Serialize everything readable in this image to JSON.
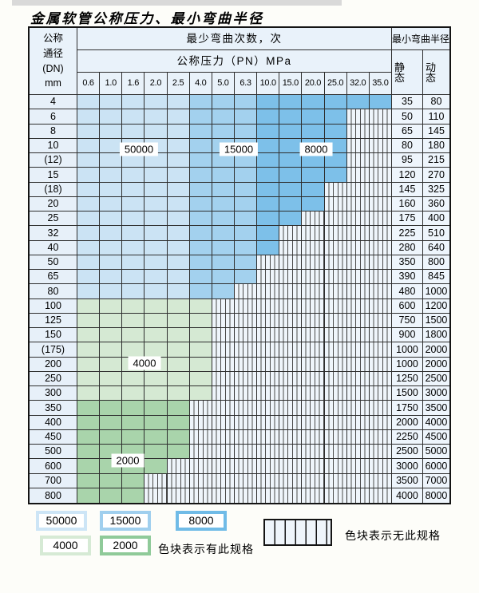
{
  "title": "金属软管公称压力、最小弯曲半径",
  "table": {
    "header": {
      "dn_lines": [
        "公称",
        "通径",
        "(DN)",
        "mm"
      ],
      "cycles": "最少弯曲次数，次",
      "pn": "公称压力（PN）MPa",
      "radius": "最小弯曲半径",
      "static": "静 态",
      "dynamic": "动 态",
      "pressures": [
        "0.6",
        "1.0",
        "1.6",
        "2.0",
        "2.5",
        "4.0",
        "5.0",
        "6.3",
        "10.0",
        "15.0",
        "20.0",
        "25.0",
        "32.0",
        "35.0"
      ]
    },
    "region_labels": [
      "50000",
      "15000",
      "8000",
      "4000",
      "2000"
    ],
    "rows": [
      {
        "dn": "4",
        "avail": 14,
        "zone": "blue",
        "static": "35",
        "dynamic": "80"
      },
      {
        "dn": "6",
        "avail": 12,
        "zone": "blue",
        "static": "50",
        "dynamic": "110"
      },
      {
        "dn": "8",
        "avail": 12,
        "zone": "blue",
        "static": "65",
        "dynamic": "145"
      },
      {
        "dn": "10",
        "avail": 12,
        "zone": "blue",
        "static": "80",
        "dynamic": "180"
      },
      {
        "dn": "(12)",
        "avail": 12,
        "zone": "blue",
        "static": "95",
        "dynamic": "215"
      },
      {
        "dn": "15",
        "avail": 12,
        "zone": "blue",
        "static": "120",
        "dynamic": "270"
      },
      {
        "dn": "(18)",
        "avail": 11,
        "zone": "blue",
        "static": "145",
        "dynamic": "325"
      },
      {
        "dn": "20",
        "avail": 11,
        "zone": "blue",
        "static": "160",
        "dynamic": "360"
      },
      {
        "dn": "25",
        "avail": 10,
        "zone": "blue",
        "static": "175",
        "dynamic": "400"
      },
      {
        "dn": "32",
        "avail": 9,
        "zone": "blue",
        "static": "225",
        "dynamic": "510"
      },
      {
        "dn": "40",
        "avail": 9,
        "zone": "blue",
        "static": "280",
        "dynamic": "640"
      },
      {
        "dn": "50",
        "avail": 8,
        "zone": "blue",
        "static": "350",
        "dynamic": "800"
      },
      {
        "dn": "65",
        "avail": 8,
        "zone": "blue",
        "static": "390",
        "dynamic": "845"
      },
      {
        "dn": "80",
        "avail": 7,
        "zone": "blue",
        "static": "480",
        "dynamic": "1000"
      },
      {
        "dn": "100",
        "avail": 6,
        "zone": "g4",
        "static": "600",
        "dynamic": "1200"
      },
      {
        "dn": "125",
        "avail": 6,
        "zone": "g4",
        "static": "750",
        "dynamic": "1500"
      },
      {
        "dn": "150",
        "avail": 6,
        "zone": "g4",
        "static": "900",
        "dynamic": "1800"
      },
      {
        "dn": "(175)",
        "avail": 6,
        "zone": "g4",
        "static": "1000",
        "dynamic": "2000"
      },
      {
        "dn": "200",
        "avail": 6,
        "zone": "g4",
        "static": "1000",
        "dynamic": "2000"
      },
      {
        "dn": "250",
        "avail": 6,
        "zone": "g4",
        "static": "1250",
        "dynamic": "2500"
      },
      {
        "dn": "300",
        "avail": 6,
        "zone": "g4",
        "static": "1500",
        "dynamic": "3000"
      },
      {
        "dn": "350",
        "avail": 5,
        "zone": "g2",
        "static": "1750",
        "dynamic": "3500"
      },
      {
        "dn": "400",
        "avail": 5,
        "zone": "g2",
        "static": "2000",
        "dynamic": "4000"
      },
      {
        "dn": "450",
        "avail": 5,
        "zone": "g2",
        "static": "2250",
        "dynamic": "4500"
      },
      {
        "dn": "500",
        "avail": 5,
        "zone": "g2",
        "static": "2500",
        "dynamic": "5000"
      },
      {
        "dn": "600",
        "avail": 4,
        "zone": "g2",
        "static": "3000",
        "dynamic": "6000"
      },
      {
        "dn": "700",
        "avail": 3,
        "zone": "g2",
        "static": "3500",
        "dynamic": "7000"
      },
      {
        "dn": "800",
        "avail": 3,
        "zone": "g2",
        "static": "4000",
        "dynamic": "8000"
      }
    ]
  },
  "colors": {
    "blue_light": "#cbe3f4",
    "blue_mid": "#a3d1ee",
    "blue_dark": "#7dc0e9",
    "green_light": "#d5e9d3",
    "green_dark": "#a9d4ab",
    "hatch_bg": "#eff5fb",
    "header_bg": "#e9f2fa",
    "dn_bg": "#e7f0f9",
    "value_bg": "#eef5fc",
    "grid_line": "#2e2e2e",
    "outer_border": "#141414"
  },
  "legend": {
    "swatches": [
      {
        "label": "50000",
        "color": "#cde5f6"
      },
      {
        "label": "15000",
        "color": "#a0cfee"
      },
      {
        "label": "8000",
        "color": "#70bbe7"
      },
      {
        "label": "4000",
        "color": "#d6ead5"
      },
      {
        "label": "2000",
        "color": "#8fca99"
      }
    ],
    "has_spec": "色块表示有此规格",
    "no_spec": "色块表示无此规格"
  }
}
